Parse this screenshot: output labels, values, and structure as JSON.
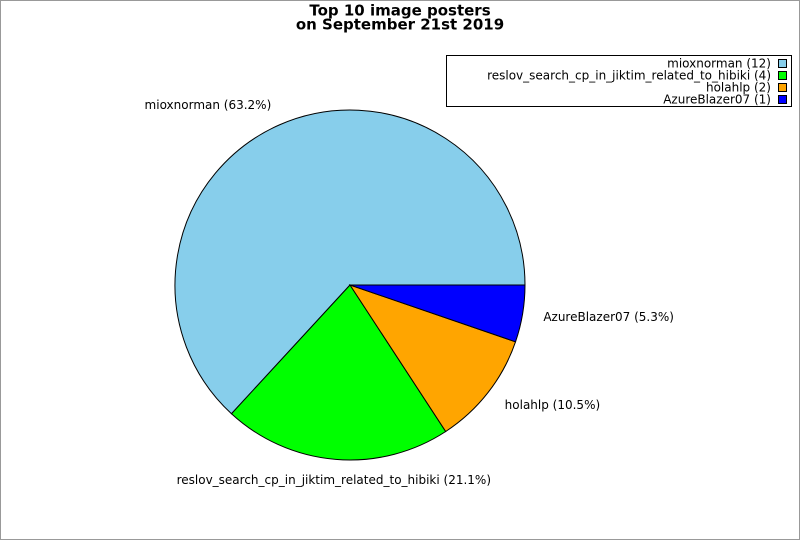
{
  "chart_data": {
    "type": "pie",
    "title": "Top 10 image posters",
    "subtitle": "on September 21st 2019",
    "categories": [
      "mioxnorman (12)",
      "reslov_search_cp_in_jiktim_related_to_hibiki (4)",
      "holahlp (2)",
      "AzureBlazer07 (1)"
    ],
    "values": [
      12,
      4,
      2,
      1
    ],
    "value_labels": [
      "mioxnorman (63.2%)",
      "reslov_search_cp_in_jiktim_related_to_hibiki (21.1%)",
      "holahlp (10.5%)",
      "AzureBlazer07 (5.3%)"
    ],
    "colors": [
      "#87ceeb",
      "#00ff00",
      "#ffa500",
      "#0000ff"
    ],
    "legend": "upper right"
  }
}
